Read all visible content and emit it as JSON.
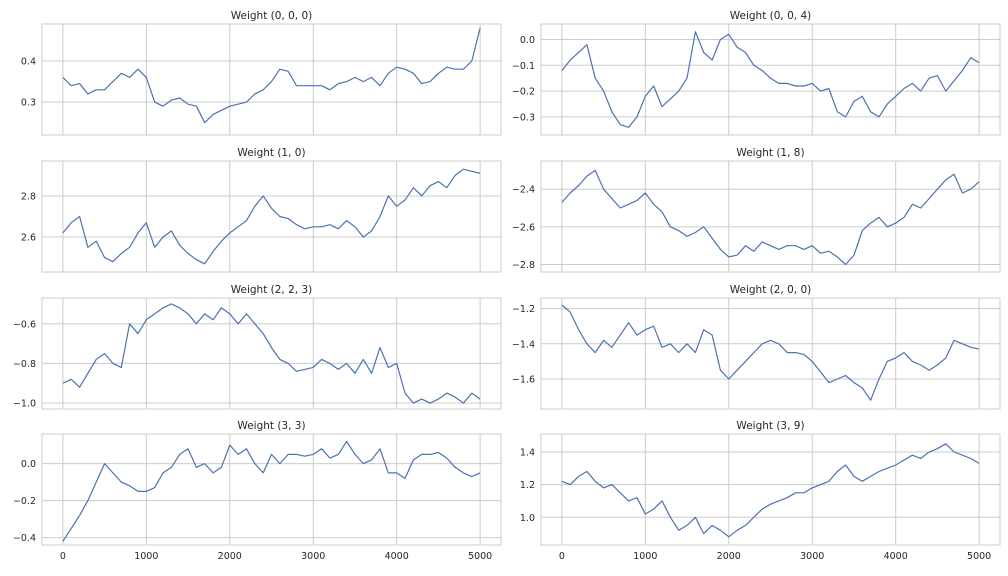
{
  "chart_data": [
    {
      "type": "line",
      "title": "Weight (0, 0, 0)",
      "xlim": [
        -250,
        5250
      ],
      "ylim": [
        0.22,
        0.49
      ],
      "yticks": [
        0.3,
        0.4
      ],
      "ytick_labels": [
        "0.3",
        "0.4"
      ],
      "xticks": [
        0,
        1000,
        2000,
        3000,
        4000,
        5000
      ],
      "xtick_labels": [],
      "show_xtick_labels": false,
      "grid": true,
      "series": [
        {
          "x": [
            0,
            100,
            200,
            300,
            400,
            500,
            600,
            700,
            800,
            900,
            1000,
            1100,
            1200,
            1300,
            1400,
            1500,
            1600,
            1700,
            1800,
            1900,
            2000,
            2100,
            2200,
            2300,
            2400,
            2500,
            2600,
            2700,
            2800,
            2900,
            3000,
            3100,
            3200,
            3300,
            3400,
            3500,
            3600,
            3700,
            3800,
            3900,
            4000,
            4100,
            4200,
            4300,
            4400,
            4500,
            4600,
            4700,
            4800,
            4900,
            5000
          ],
          "y": [
            0.36,
            0.34,
            0.345,
            0.32,
            0.33,
            0.33,
            0.35,
            0.37,
            0.36,
            0.38,
            0.36,
            0.3,
            0.29,
            0.305,
            0.31,
            0.295,
            0.29,
            0.25,
            0.27,
            0.28,
            0.29,
            0.295,
            0.3,
            0.32,
            0.33,
            0.35,
            0.38,
            0.375,
            0.34,
            0.34,
            0.34,
            0.34,
            0.33,
            0.345,
            0.35,
            0.36,
            0.35,
            0.36,
            0.34,
            0.37,
            0.385,
            0.38,
            0.37,
            0.345,
            0.35,
            0.37,
            0.385,
            0.38,
            0.38,
            0.4,
            0.48
          ]
        }
      ]
    },
    {
      "type": "line",
      "title": "Weight (0, 0, 4)",
      "xlim": [
        -250,
        5250
      ],
      "ylim": [
        -0.37,
        0.06
      ],
      "yticks": [
        -0.3,
        -0.2,
        -0.1,
        0.0
      ],
      "ytick_labels": [
        "−0.3",
        "−0.2",
        "−0.1",
        "0.0"
      ],
      "xticks": [
        0,
        1000,
        2000,
        3000,
        4000,
        5000
      ],
      "xtick_labels": [],
      "show_xtick_labels": false,
      "grid": true,
      "series": [
        {
          "x": [
            0,
            100,
            200,
            300,
            400,
            500,
            600,
            700,
            800,
            900,
            1000,
            1100,
            1200,
            1300,
            1400,
            1500,
            1600,
            1700,
            1800,
            1900,
            2000,
            2100,
            2200,
            2300,
            2400,
            2500,
            2600,
            2700,
            2800,
            2900,
            3000,
            3100,
            3200,
            3300,
            3400,
            3500,
            3600,
            3700,
            3800,
            3900,
            4000,
            4100,
            4200,
            4300,
            4400,
            4500,
            4600,
            4700,
            4800,
            4900,
            5000
          ],
          "y": [
            -0.12,
            -0.08,
            -0.05,
            -0.02,
            -0.15,
            -0.2,
            -0.28,
            -0.33,
            -0.34,
            -0.3,
            -0.22,
            -0.18,
            -0.26,
            -0.23,
            -0.2,
            -0.15,
            0.03,
            -0.05,
            -0.08,
            0.0,
            0.02,
            -0.03,
            -0.05,
            -0.1,
            -0.12,
            -0.15,
            -0.17,
            -0.17,
            -0.18,
            -0.18,
            -0.17,
            -0.2,
            -0.19,
            -0.28,
            -0.3,
            -0.24,
            -0.22,
            -0.28,
            -0.3,
            -0.25,
            -0.22,
            -0.19,
            -0.17,
            -0.2,
            -0.15,
            -0.14,
            -0.2,
            -0.16,
            -0.12,
            -0.07,
            -0.09
          ]
        }
      ]
    },
    {
      "type": "line",
      "title": "Weight (1, 0)",
      "xlim": [
        -250,
        5250
      ],
      "ylim": [
        2.43,
        2.97
      ],
      "yticks": [
        2.6,
        2.8
      ],
      "ytick_labels": [
        "2.6",
        "2.8"
      ],
      "xticks": [
        0,
        1000,
        2000,
        3000,
        4000,
        5000
      ],
      "xtick_labels": [],
      "show_xtick_labels": false,
      "grid": true,
      "series": [
        {
          "x": [
            0,
            100,
            200,
            300,
            400,
            500,
            600,
            700,
            800,
            900,
            1000,
            1100,
            1200,
            1300,
            1400,
            1500,
            1600,
            1700,
            1800,
            1900,
            2000,
            2100,
            2200,
            2300,
            2400,
            2500,
            2600,
            2700,
            2800,
            2900,
            3000,
            3100,
            3200,
            3300,
            3400,
            3500,
            3600,
            3700,
            3800,
            3900,
            4000,
            4100,
            4200,
            4300,
            4400,
            4500,
            4600,
            4700,
            4800,
            4900,
            5000
          ],
          "y": [
            2.62,
            2.67,
            2.7,
            2.55,
            2.58,
            2.5,
            2.48,
            2.52,
            2.55,
            2.62,
            2.67,
            2.55,
            2.6,
            2.63,
            2.56,
            2.52,
            2.49,
            2.47,
            2.53,
            2.58,
            2.62,
            2.65,
            2.68,
            2.75,
            2.8,
            2.74,
            2.7,
            2.69,
            2.66,
            2.64,
            2.65,
            2.65,
            2.66,
            2.64,
            2.68,
            2.65,
            2.6,
            2.63,
            2.7,
            2.8,
            2.75,
            2.78,
            2.84,
            2.8,
            2.85,
            2.87,
            2.84,
            2.9,
            2.93,
            2.92,
            2.91
          ]
        }
      ]
    },
    {
      "type": "line",
      "title": "Weight (1, 8)",
      "xlim": [
        -250,
        5250
      ],
      "ylim": [
        -2.84,
        -2.25
      ],
      "yticks": [
        -2.8,
        -2.6,
        -2.4
      ],
      "ytick_labels": [
        "−2.8",
        "−2.6",
        "−2.4"
      ],
      "xticks": [
        0,
        1000,
        2000,
        3000,
        4000,
        5000
      ],
      "xtick_labels": [],
      "show_xtick_labels": false,
      "grid": true,
      "series": [
        {
          "x": [
            0,
            100,
            200,
            300,
            400,
            500,
            600,
            700,
            800,
            900,
            1000,
            1100,
            1200,
            1300,
            1400,
            1500,
            1600,
            1700,
            1800,
            1900,
            2000,
            2100,
            2200,
            2300,
            2400,
            2500,
            2600,
            2700,
            2800,
            2900,
            3000,
            3100,
            3200,
            3300,
            3400,
            3500,
            3600,
            3700,
            3800,
            3900,
            4000,
            4100,
            4200,
            4300,
            4400,
            4500,
            4600,
            4700,
            4800,
            4900,
            5000
          ],
          "y": [
            -2.47,
            -2.42,
            -2.38,
            -2.33,
            -2.3,
            -2.4,
            -2.45,
            -2.5,
            -2.48,
            -2.46,
            -2.42,
            -2.48,
            -2.52,
            -2.6,
            -2.62,
            -2.65,
            -2.63,
            -2.6,
            -2.66,
            -2.72,
            -2.76,
            -2.75,
            -2.7,
            -2.73,
            -2.68,
            -2.7,
            -2.72,
            -2.7,
            -2.7,
            -2.72,
            -2.7,
            -2.74,
            -2.73,
            -2.76,
            -2.8,
            -2.75,
            -2.62,
            -2.58,
            -2.55,
            -2.6,
            -2.58,
            -2.55,
            -2.48,
            -2.5,
            -2.45,
            -2.4,
            -2.35,
            -2.32,
            -2.42,
            -2.4,
            -2.36
          ]
        }
      ]
    },
    {
      "type": "line",
      "title": "Weight (2, 2, 3)",
      "xlim": [
        -250,
        5250
      ],
      "ylim": [
        -1.03,
        -0.47
      ],
      "yticks": [
        -1.0,
        -0.8,
        -0.6
      ],
      "ytick_labels": [
        "−1.0",
        "−0.8",
        "−0.6"
      ],
      "xticks": [
        0,
        1000,
        2000,
        3000,
        4000,
        5000
      ],
      "xtick_labels": [],
      "show_xtick_labels": false,
      "grid": true,
      "series": [
        {
          "x": [
            0,
            100,
            200,
            300,
            400,
            500,
            600,
            700,
            800,
            900,
            1000,
            1100,
            1200,
            1300,
            1400,
            1500,
            1600,
            1700,
            1800,
            1900,
            2000,
            2100,
            2200,
            2300,
            2400,
            2500,
            2600,
            2700,
            2800,
            2900,
            3000,
            3100,
            3200,
            3300,
            3400,
            3500,
            3600,
            3700,
            3800,
            3900,
            4000,
            4100,
            4200,
            4300,
            4400,
            4500,
            4600,
            4700,
            4800,
            4900,
            5000
          ],
          "y": [
            -0.9,
            -0.88,
            -0.92,
            -0.85,
            -0.78,
            -0.75,
            -0.8,
            -0.82,
            -0.6,
            -0.65,
            -0.58,
            -0.55,
            -0.52,
            -0.5,
            -0.52,
            -0.55,
            -0.6,
            -0.55,
            -0.58,
            -0.52,
            -0.55,
            -0.6,
            -0.55,
            -0.6,
            -0.65,
            -0.72,
            -0.78,
            -0.8,
            -0.84,
            -0.83,
            -0.82,
            -0.78,
            -0.8,
            -0.83,
            -0.8,
            -0.85,
            -0.78,
            -0.85,
            -0.72,
            -0.82,
            -0.8,
            -0.95,
            -1.0,
            -0.98,
            -1.0,
            -0.98,
            -0.95,
            -0.97,
            -1.0,
            -0.95,
            -0.98
          ]
        }
      ]
    },
    {
      "type": "line",
      "title": "Weight (2, 0, 0)",
      "xlim": [
        -250,
        5250
      ],
      "ylim": [
        -1.77,
        -1.14
      ],
      "yticks": [
        -1.6,
        -1.4,
        -1.2
      ],
      "ytick_labels": [
        "−1.6",
        "−1.4",
        "−1.2"
      ],
      "xticks": [
        0,
        1000,
        2000,
        3000,
        4000,
        5000
      ],
      "xtick_labels": [],
      "show_xtick_labels": false,
      "grid": true,
      "series": [
        {
          "x": [
            0,
            100,
            200,
            300,
            400,
            500,
            600,
            700,
            800,
            900,
            1000,
            1100,
            1200,
            1300,
            1400,
            1500,
            1600,
            1700,
            1800,
            1900,
            2000,
            2100,
            2200,
            2300,
            2400,
            2500,
            2600,
            2700,
            2800,
            2900,
            3000,
            3100,
            3200,
            3300,
            3400,
            3500,
            3600,
            3700,
            3800,
            3900,
            4000,
            4100,
            4200,
            4300,
            4400,
            4500,
            4600,
            4700,
            4800,
            4900,
            5000
          ],
          "y": [
            -1.18,
            -1.22,
            -1.32,
            -1.4,
            -1.45,
            -1.38,
            -1.42,
            -1.35,
            -1.28,
            -1.35,
            -1.32,
            -1.3,
            -1.42,
            -1.4,
            -1.45,
            -1.4,
            -1.45,
            -1.32,
            -1.35,
            -1.55,
            -1.6,
            -1.55,
            -1.5,
            -1.45,
            -1.4,
            -1.38,
            -1.4,
            -1.45,
            -1.45,
            -1.46,
            -1.5,
            -1.56,
            -1.62,
            -1.6,
            -1.58,
            -1.62,
            -1.65,
            -1.72,
            -1.6,
            -1.5,
            -1.48,
            -1.45,
            -1.5,
            -1.52,
            -1.55,
            -1.52,
            -1.48,
            -1.38,
            -1.4,
            -1.42,
            -1.43
          ]
        }
      ]
    },
    {
      "type": "line",
      "title": "Weight (3, 3)",
      "xlim": [
        -250,
        5250
      ],
      "ylim": [
        -0.44,
        0.16
      ],
      "yticks": [
        -0.4,
        -0.2,
        0.0
      ],
      "ytick_labels": [
        "−0.4",
        "−0.2",
        "0.0"
      ],
      "xticks": [
        0,
        1000,
        2000,
        3000,
        4000,
        5000
      ],
      "xtick_labels": [
        "0",
        "1000",
        "2000",
        "3000",
        "4000",
        "5000"
      ],
      "show_xtick_labels": true,
      "grid": true,
      "series": [
        {
          "x": [
            0,
            100,
            200,
            300,
            400,
            500,
            600,
            700,
            800,
            900,
            1000,
            1100,
            1200,
            1300,
            1400,
            1500,
            1600,
            1700,
            1800,
            1900,
            2000,
            2100,
            2200,
            2300,
            2400,
            2500,
            2600,
            2700,
            2800,
            2900,
            3000,
            3100,
            3200,
            3300,
            3400,
            3500,
            3600,
            3700,
            3800,
            3900,
            4000,
            4100,
            4200,
            4300,
            4400,
            4500,
            4600,
            4700,
            4800,
            4900,
            5000
          ],
          "y": [
            -0.42,
            -0.35,
            -0.28,
            -0.2,
            -0.1,
            0.0,
            -0.05,
            -0.1,
            -0.12,
            -0.15,
            -0.15,
            -0.13,
            -0.05,
            -0.02,
            0.05,
            0.08,
            -0.02,
            0.0,
            -0.05,
            -0.02,
            0.1,
            0.05,
            0.08,
            0.0,
            -0.05,
            0.05,
            0.0,
            0.05,
            0.05,
            0.04,
            0.05,
            0.08,
            0.03,
            0.05,
            0.12,
            0.05,
            0.0,
            0.02,
            0.08,
            -0.05,
            -0.05,
            -0.08,
            0.02,
            0.05,
            0.05,
            0.06,
            0.03,
            -0.02,
            -0.05,
            -0.07,
            -0.05
          ]
        }
      ]
    },
    {
      "type": "line",
      "title": "Weight (3, 9)",
      "xlim": [
        -250,
        5250
      ],
      "ylim": [
        0.83,
        1.51
      ],
      "yticks": [
        1.0,
        1.2,
        1.4
      ],
      "ytick_labels": [
        "1.0",
        "1.2",
        "1.4"
      ],
      "xticks": [
        0,
        1000,
        2000,
        3000,
        4000,
        5000
      ],
      "xtick_labels": [
        "0",
        "1000",
        "2000",
        "3000",
        "4000",
        "5000"
      ],
      "show_xtick_labels": true,
      "grid": true,
      "series": [
        {
          "x": [
            0,
            100,
            200,
            300,
            400,
            500,
            600,
            700,
            800,
            900,
            1000,
            1100,
            1200,
            1300,
            1400,
            1500,
            1600,
            1700,
            1800,
            1900,
            2000,
            2100,
            2200,
            2300,
            2400,
            2500,
            2600,
            2700,
            2800,
            2900,
            3000,
            3100,
            3200,
            3300,
            3400,
            3500,
            3600,
            3700,
            3800,
            3900,
            4000,
            4100,
            4200,
            4300,
            4400,
            4500,
            4600,
            4700,
            4800,
            4900,
            5000
          ],
          "y": [
            1.22,
            1.2,
            1.25,
            1.28,
            1.22,
            1.18,
            1.2,
            1.15,
            1.1,
            1.12,
            1.02,
            1.05,
            1.1,
            1.0,
            0.92,
            0.95,
            1.0,
            0.9,
            0.95,
            0.92,
            0.88,
            0.92,
            0.95,
            1.0,
            1.05,
            1.08,
            1.1,
            1.12,
            1.15,
            1.15,
            1.18,
            1.2,
            1.22,
            1.28,
            1.32,
            1.25,
            1.22,
            1.25,
            1.28,
            1.3,
            1.32,
            1.35,
            1.38,
            1.36,
            1.4,
            1.42,
            1.45,
            1.4,
            1.38,
            1.36,
            1.33
          ]
        }
      ]
    }
  ],
  "colors": {
    "line": "#4c72b0",
    "grid": "#cccccc",
    "text": "#262626",
    "background": "#ffffff"
  }
}
